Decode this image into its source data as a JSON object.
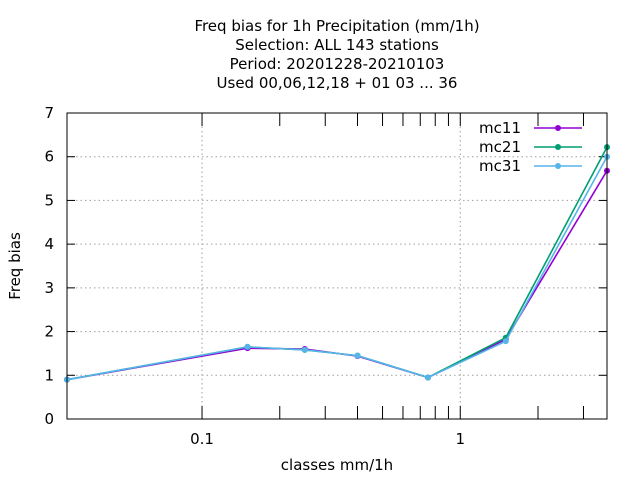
{
  "chart_data": {
    "type": "line",
    "title_lines": [
      "Freq bias  for 1h Precipitation (mm/1h)",
      "Selection: ALL    143 stations",
      "Period: 20201228-20210103",
      "Used  00,06,12,18 + 01 03 ... 36"
    ],
    "xlabel": "classes mm/1h",
    "ylabel": "Freq bias",
    "x_scale": "log",
    "xlim": [
      0.03,
      3.7
    ],
    "ylim": [
      0,
      7
    ],
    "x_ticks": [
      {
        "value": 0.1,
        "label": "0.1"
      },
      {
        "value": 1,
        "label": "1"
      }
    ],
    "x_minor_ticks": [
      0.2,
      0.3,
      0.4,
      0.5,
      0.6,
      0.7,
      0.8,
      0.9,
      2,
      3
    ],
    "y_ticks": [
      {
        "value": 0,
        "label": "0"
      },
      {
        "value": 1,
        "label": "1"
      },
      {
        "value": 2,
        "label": "2"
      },
      {
        "value": 3,
        "label": "3"
      },
      {
        "value": 4,
        "label": "4"
      },
      {
        "value": 5,
        "label": "5"
      },
      {
        "value": 6,
        "label": "6"
      },
      {
        "value": 7,
        "label": "7"
      }
    ],
    "grid": true,
    "legend_position": "top-right",
    "x": [
      0.03,
      0.15,
      0.25,
      0.4,
      0.75,
      1.5,
      3.7
    ],
    "series": [
      {
        "name": "mc11",
        "color": "#9400d3",
        "values": [
          0.9,
          1.62,
          1.6,
          1.44,
          0.95,
          1.82,
          5.68
        ]
      },
      {
        "name": "mc21",
        "color": "#009e73",
        "values": [
          0.9,
          1.65,
          1.58,
          1.45,
          0.95,
          1.86,
          6.22
        ]
      },
      {
        "name": "mc31",
        "color": "#56b4e9",
        "values": [
          0.9,
          1.65,
          1.58,
          1.45,
          0.95,
          1.78,
          6.0
        ]
      }
    ]
  }
}
